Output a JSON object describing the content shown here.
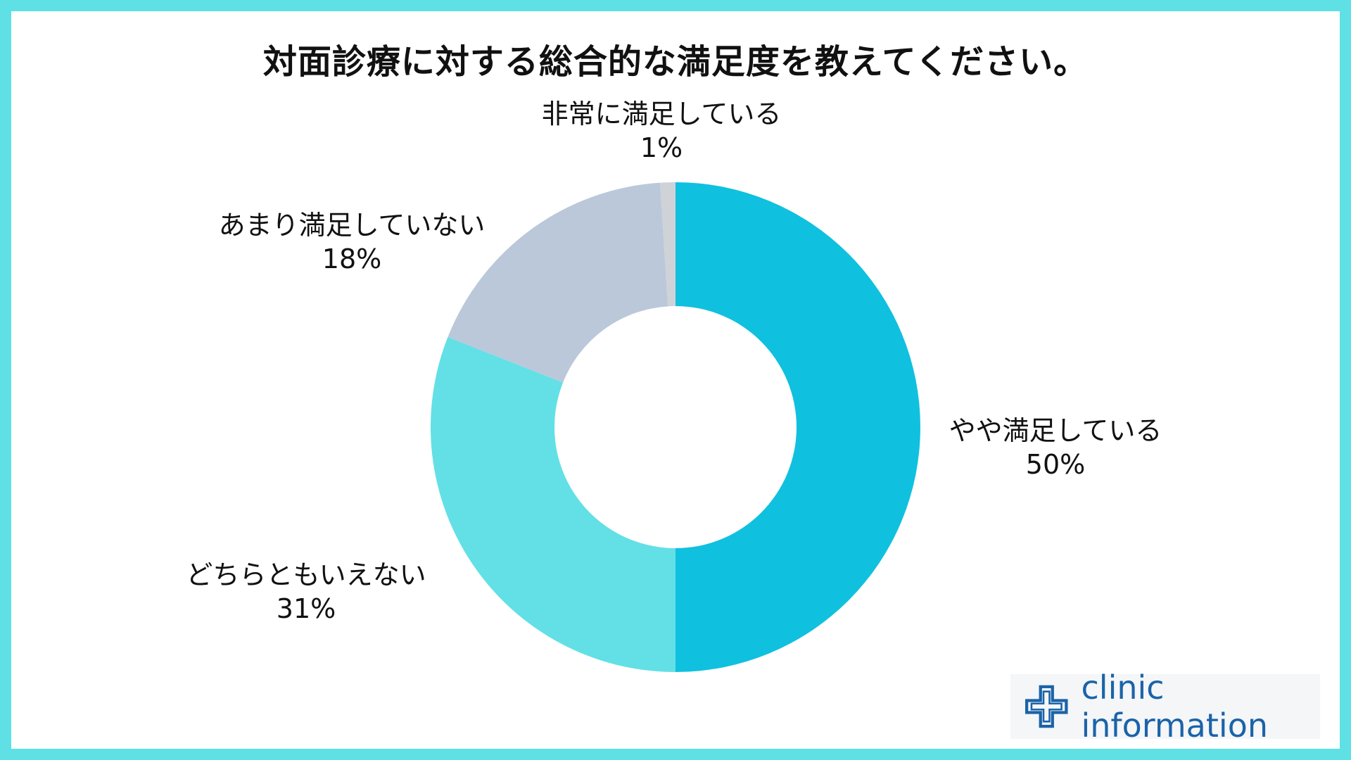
{
  "chart_data": {
    "type": "pie",
    "title": "対面診療に対する総合的な満足度を教えてください。",
    "slices": [
      {
        "label": "やや満足している",
        "value": 50,
        "pct_label": "50%",
        "color": "#10c0df"
      },
      {
        "label": "どちらともいえない",
        "value": 31,
        "pct_label": "31%",
        "color": "#62e0e6"
      },
      {
        "label": "あまり満足していない",
        "value": 18,
        "pct_label": "18%",
        "color": "#bac8da"
      },
      {
        "label": "非常に満足している",
        "value": 1,
        "pct_label": "1%",
        "color": "#cfd3d8"
      }
    ],
    "donut": true,
    "start": "top",
    "direction": "clockwise"
  },
  "logo": {
    "text": "clinic information",
    "color": "#1b63a8"
  },
  "colors": {
    "border": "#5fe0e5",
    "background": "#ffffff"
  }
}
